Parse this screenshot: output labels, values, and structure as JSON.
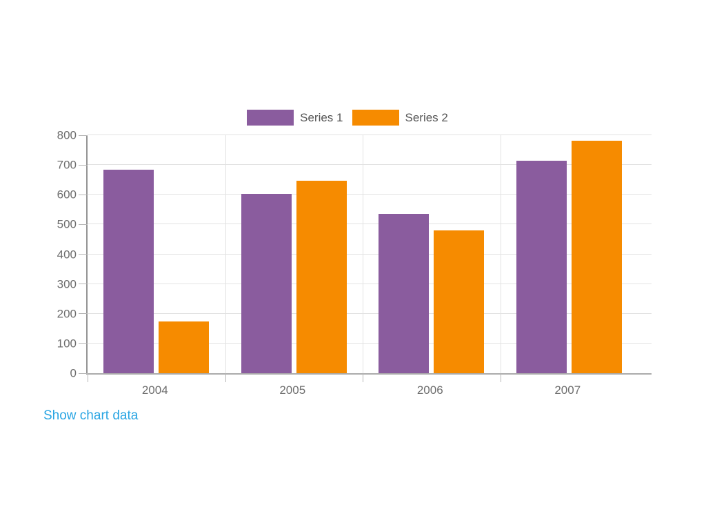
{
  "chart": {
    "toggle_link_label": "Show chart data"
  },
  "colors": {
    "series1": "#8a5c9e",
    "series2": "#f68b00",
    "grid": "#e2e2e2",
    "axis": "#9c9c9c",
    "tick_text": "#6d6d6d",
    "legend_text": "#555555",
    "link": "#29a5e3",
    "background": "#ffffff"
  },
  "chart_data": {
    "type": "bar",
    "title": "",
    "xlabel": "",
    "ylabel": "",
    "categories": [
      "2004",
      "2005",
      "2006",
      "2007"
    ],
    "series": [
      {
        "name": "Series 1",
        "color": "#8a5c9e",
        "values": [
          683,
          603,
          536,
          715
        ]
      },
      {
        "name": "Series 2",
        "color": "#f68b00",
        "values": [
          174,
          648,
          480,
          782
        ]
      }
    ],
    "ylim": [
      0,
      800
    ],
    "yticks": [
      0,
      100,
      200,
      300,
      400,
      500,
      600,
      700,
      800
    ],
    "grid": true,
    "legend_position": "top"
  }
}
